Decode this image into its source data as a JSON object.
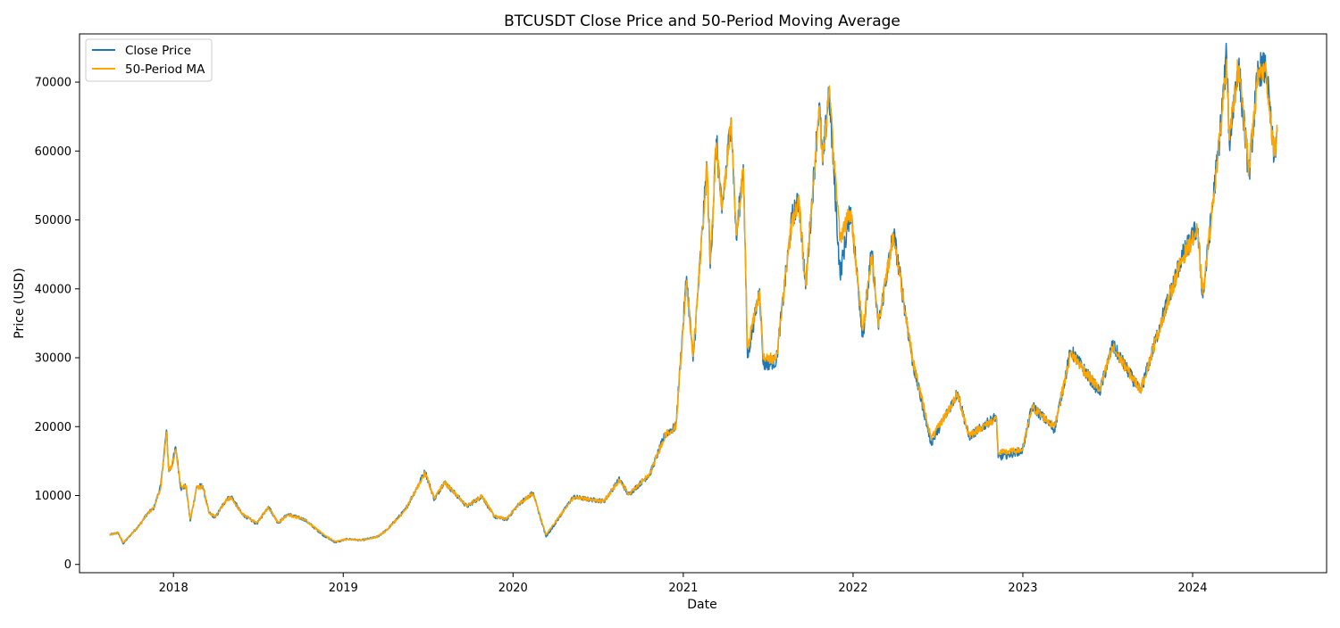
{
  "chart_data": {
    "type": "line",
    "title": "BTCUSDT Close Price and 50-Period Moving Average",
    "xlabel": "Date",
    "ylabel": "Price (USD)",
    "xlim": [
      "2017-06-13",
      "2024-10-15"
    ],
    "ylim": [
      -1200,
      77000
    ],
    "x_ticks": [
      {
        "label": "2018",
        "date": "2018-01-01"
      },
      {
        "label": "2019",
        "date": "2019-01-01"
      },
      {
        "label": "2020",
        "date": "2020-01-01"
      },
      {
        "label": "2021",
        "date": "2021-01-01"
      },
      {
        "label": "2022",
        "date": "2022-01-01"
      },
      {
        "label": "2023",
        "date": "2023-01-01"
      },
      {
        "label": "2024",
        "date": "2024-01-01"
      }
    ],
    "y_ticks": [
      0,
      10000,
      20000,
      30000,
      40000,
      50000,
      60000,
      70000
    ],
    "grid": false,
    "legend_position": "top-left",
    "series": [
      {
        "name": "Close Price",
        "color": "#1f77b4",
        "points": [
          [
            "2017-08-17",
            4300
          ],
          [
            "2017-09-04",
            4600
          ],
          [
            "2017-09-15",
            3000
          ],
          [
            "2017-10-01",
            4300
          ],
          [
            "2017-10-20",
            5700
          ],
          [
            "2017-11-05",
            7300
          ],
          [
            "2017-11-20",
            8200
          ],
          [
            "2017-12-05",
            11500
          ],
          [
            "2017-12-10",
            15000
          ],
          [
            "2017-12-17",
            19500
          ],
          [
            "2017-12-22",
            13500
          ],
          [
            "2017-12-28",
            14200
          ],
          [
            "2018-01-06",
            17000
          ],
          [
            "2018-01-17",
            11000
          ],
          [
            "2018-01-28",
            11400
          ],
          [
            "2018-02-06",
            6300
          ],
          [
            "2018-02-20",
            11300
          ],
          [
            "2018-03-05",
            11400
          ],
          [
            "2018-03-18",
            7500
          ],
          [
            "2018-04-01",
            6800
          ],
          [
            "2018-04-25",
            9500
          ],
          [
            "2018-05-06",
            9800
          ],
          [
            "2018-05-28",
            7300
          ],
          [
            "2018-06-29",
            5900
          ],
          [
            "2018-07-24",
            8400
          ],
          [
            "2018-08-14",
            6000
          ],
          [
            "2018-09-04",
            7300
          ],
          [
            "2018-10-10",
            6500
          ],
          [
            "2018-11-20",
            4200
          ],
          [
            "2018-12-15",
            3200
          ],
          [
            "2019-01-10",
            3700
          ],
          [
            "2019-02-08",
            3500
          ],
          [
            "2019-03-15",
            4000
          ],
          [
            "2019-04-05",
            5000
          ],
          [
            "2019-05-15",
            8000
          ],
          [
            "2019-06-26",
            13500
          ],
          [
            "2019-07-16",
            9400
          ],
          [
            "2019-08-06",
            12000
          ],
          [
            "2019-09-24",
            8400
          ],
          [
            "2019-10-26",
            9900
          ],
          [
            "2019-11-22",
            6900
          ],
          [
            "2019-12-18",
            6500
          ],
          [
            "2020-01-14",
            8800
          ],
          [
            "2020-02-13",
            10400
          ],
          [
            "2020-03-12",
            4000
          ],
          [
            "2020-04-29",
            8800
          ],
          [
            "2020-05-10",
            9800
          ],
          [
            "2020-06-15",
            9400
          ],
          [
            "2020-07-15",
            9200
          ],
          [
            "2020-08-17",
            12400
          ],
          [
            "2020-09-05",
            10100
          ],
          [
            "2020-10-21",
            13100
          ],
          [
            "2020-11-24",
            19000
          ],
          [
            "2020-12-16",
            20000
          ],
          [
            "2021-01-08",
            41800
          ],
          [
            "2021-01-22",
            29500
          ],
          [
            "2021-02-21",
            58000
          ],
          [
            "2021-02-28",
            43000
          ],
          [
            "2021-03-13",
            61700
          ],
          [
            "2021-03-25",
            51000
          ],
          [
            "2021-04-14",
            64800
          ],
          [
            "2021-04-25",
            47200
          ],
          [
            "2021-05-10",
            58000
          ],
          [
            "2021-05-19",
            30000
          ],
          [
            "2021-06-14",
            40000
          ],
          [
            "2021-06-22",
            29000
          ],
          [
            "2021-07-20",
            29500
          ],
          [
            "2021-08-23",
            50500
          ],
          [
            "2021-09-07",
            52800
          ],
          [
            "2021-09-21",
            40000
          ],
          [
            "2021-10-20",
            66900
          ],
          [
            "2021-10-28",
            58000
          ],
          [
            "2021-11-10",
            69000
          ],
          [
            "2021-12-04",
            42000
          ],
          [
            "2021-12-27",
            51800
          ],
          [
            "2022-01-22",
            33000
          ],
          [
            "2022-02-10",
            45500
          ],
          [
            "2022-02-24",
            34500
          ],
          [
            "2022-03-29",
            48200
          ],
          [
            "2022-05-10",
            29000
          ],
          [
            "2022-06-18",
            17600
          ],
          [
            "2022-08-14",
            25000
          ],
          [
            "2022-09-07",
            18500
          ],
          [
            "2022-11-05",
            21500
          ],
          [
            "2022-11-09",
            15500
          ],
          [
            "2022-12-31",
            16500
          ],
          [
            "2023-01-21",
            23000
          ],
          [
            "2023-03-10",
            19600
          ],
          [
            "2023-04-14",
            31000
          ],
          [
            "2023-06-15",
            25000
          ],
          [
            "2023-07-13",
            31800
          ],
          [
            "2023-09-11",
            25000
          ],
          [
            "2023-10-24",
            35000
          ],
          [
            "2023-12-08",
            44500
          ],
          [
            "2024-01-11",
            48900
          ],
          [
            "2024-01-23",
            38700
          ],
          [
            "2024-02-28",
            62000
          ],
          [
            "2024-03-14",
            73800
          ],
          [
            "2024-03-20",
            61000
          ],
          [
            "2024-04-08",
            72800
          ],
          [
            "2024-05-01",
            56500
          ],
          [
            "2024-05-21",
            71900
          ],
          [
            "2024-06-07",
            71900
          ],
          [
            "2024-06-24",
            58800
          ],
          [
            "2024-07-01",
            63000
          ]
        ]
      },
      {
        "name": "50-Period MA",
        "color": "#ffa500",
        "points": [
          [
            "2017-08-17",
            4300
          ],
          [
            "2017-09-04",
            4600
          ],
          [
            "2017-09-15",
            3200
          ],
          [
            "2017-10-01",
            4300
          ],
          [
            "2017-10-20",
            5700
          ],
          [
            "2017-11-05",
            7300
          ],
          [
            "2017-11-20",
            8200
          ],
          [
            "2017-12-05",
            11300
          ],
          [
            "2017-12-10",
            14800
          ],
          [
            "2017-12-17",
            19200
          ],
          [
            "2017-12-22",
            13700
          ],
          [
            "2017-12-28",
            14200
          ],
          [
            "2018-01-06",
            16700
          ],
          [
            "2018-01-17",
            11300
          ],
          [
            "2018-01-28",
            11400
          ],
          [
            "2018-02-06",
            6600
          ],
          [
            "2018-02-20",
            11100
          ],
          [
            "2018-03-05",
            11300
          ],
          [
            "2018-03-18",
            7600
          ],
          [
            "2018-04-01",
            6900
          ],
          [
            "2018-04-25",
            9400
          ],
          [
            "2018-05-06",
            9700
          ],
          [
            "2018-05-28",
            7400
          ],
          [
            "2018-06-29",
            6000
          ],
          [
            "2018-07-24",
            8300
          ],
          [
            "2018-08-14",
            6100
          ],
          [
            "2018-09-04",
            7200
          ],
          [
            "2018-10-10",
            6500
          ],
          [
            "2018-11-20",
            4300
          ],
          [
            "2018-12-15",
            3300
          ],
          [
            "2019-01-10",
            3700
          ],
          [
            "2019-02-08",
            3500
          ],
          [
            "2019-03-15",
            4000
          ],
          [
            "2019-04-05",
            5000
          ],
          [
            "2019-05-15",
            8000
          ],
          [
            "2019-06-26",
            13300
          ],
          [
            "2019-07-16",
            9500
          ],
          [
            "2019-08-06",
            11900
          ],
          [
            "2019-09-24",
            8500
          ],
          [
            "2019-10-26",
            9900
          ],
          [
            "2019-11-22",
            7000
          ],
          [
            "2019-12-18",
            6600
          ],
          [
            "2020-01-14",
            8800
          ],
          [
            "2020-02-13",
            10300
          ],
          [
            "2020-03-12",
            4300
          ],
          [
            "2020-04-29",
            8800
          ],
          [
            "2020-05-10",
            9700
          ],
          [
            "2020-06-15",
            9400
          ],
          [
            "2020-07-15",
            9200
          ],
          [
            "2020-08-17",
            12300
          ],
          [
            "2020-09-05",
            10200
          ],
          [
            "2020-10-21",
            13100
          ],
          [
            "2020-11-24",
            18900
          ],
          [
            "2020-12-16",
            19900
          ],
          [
            "2021-01-08",
            41200
          ],
          [
            "2021-01-22",
            30200
          ],
          [
            "2021-02-21",
            57500
          ],
          [
            "2021-02-28",
            43600
          ],
          [
            "2021-03-13",
            61200
          ],
          [
            "2021-03-25",
            51500
          ],
          [
            "2021-04-14",
            64200
          ],
          [
            "2021-04-25",
            47800
          ],
          [
            "2021-05-10",
            57500
          ],
          [
            "2021-05-19",
            31500
          ],
          [
            "2021-06-14",
            39700
          ],
          [
            "2021-06-22",
            29800
          ],
          [
            "2021-07-20",
            29900
          ],
          [
            "2021-08-23",
            50100
          ],
          [
            "2021-09-07",
            52300
          ],
          [
            "2021-09-21",
            40600
          ],
          [
            "2021-10-20",
            66400
          ],
          [
            "2021-10-28",
            58500
          ],
          [
            "2021-11-10",
            68600
          ],
          [
            "2021-12-04",
            47500
          ],
          [
            "2021-12-27",
            51300
          ],
          [
            "2022-01-22",
            34000
          ],
          [
            "2022-02-10",
            45000
          ],
          [
            "2022-02-24",
            35000
          ],
          [
            "2022-03-29",
            47800
          ],
          [
            "2022-05-10",
            29500
          ],
          [
            "2022-06-18",
            18200
          ],
          [
            "2022-08-14",
            24700
          ],
          [
            "2022-09-07",
            18800
          ],
          [
            "2022-11-05",
            21200
          ],
          [
            "2022-11-09",
            16200
          ],
          [
            "2022-12-31",
            16600
          ],
          [
            "2023-01-21",
            22800
          ],
          [
            "2023-03-10",
            20000
          ],
          [
            "2023-04-14",
            30700
          ],
          [
            "2023-06-15",
            25300
          ],
          [
            "2023-07-13",
            31500
          ],
          [
            "2023-09-11",
            25300
          ],
          [
            "2023-10-24",
            34700
          ],
          [
            "2023-12-08",
            44200
          ],
          [
            "2024-01-11",
            48400
          ],
          [
            "2024-01-23",
            39200
          ],
          [
            "2024-02-28",
            61500
          ],
          [
            "2024-03-14",
            73300
          ],
          [
            "2024-03-20",
            61600
          ],
          [
            "2024-04-08",
            72300
          ],
          [
            "2024-05-01",
            57200
          ],
          [
            "2024-05-21",
            71400
          ],
          [
            "2024-06-07",
            71400
          ],
          [
            "2024-06-24",
            59500
          ],
          [
            "2024-07-01",
            62800
          ]
        ]
      }
    ]
  }
}
